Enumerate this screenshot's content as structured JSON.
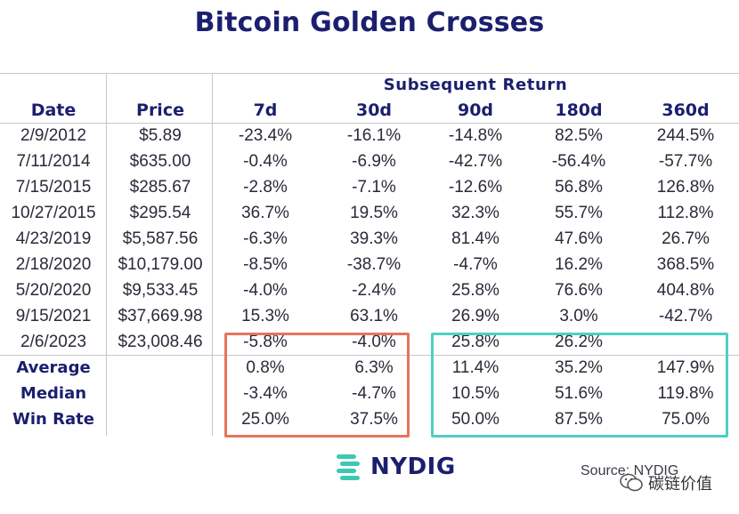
{
  "title": "Bitcoin Golden Crosses",
  "table": {
    "group_header": "Subsequent Return",
    "columns": [
      "Date",
      "Price",
      "7d",
      "30d",
      "90d",
      "180d",
      "360d"
    ],
    "rows": [
      [
        "2/9/2012",
        "$5.89",
        "-23.4%",
        "-16.1%",
        "-14.8%",
        "82.5%",
        "244.5%"
      ],
      [
        "7/11/2014",
        "$635.00",
        "-0.4%",
        "-6.9%",
        "-42.7%",
        "-56.4%",
        "-57.7%"
      ],
      [
        "7/15/2015",
        "$285.67",
        "-2.8%",
        "-7.1%",
        "-12.6%",
        "56.8%",
        "126.8%"
      ],
      [
        "10/27/2015",
        "$295.54",
        "36.7%",
        "19.5%",
        "32.3%",
        "55.7%",
        "112.8%"
      ],
      [
        "4/23/2019",
        "$5,587.56",
        "-6.3%",
        "39.3%",
        "81.4%",
        "47.6%",
        "26.7%"
      ],
      [
        "2/18/2020",
        "$10,179.00",
        "-8.5%",
        "-38.7%",
        "-4.7%",
        "16.2%",
        "368.5%"
      ],
      [
        "5/20/2020",
        "$9,533.45",
        "-4.0%",
        "-2.4%",
        "25.8%",
        "76.6%",
        "404.8%"
      ],
      [
        "9/15/2021",
        "$37,669.98",
        "15.3%",
        "63.1%",
        "26.9%",
        "3.0%",
        "-42.7%"
      ],
      [
        "2/6/2023",
        "$23,008.46",
        "-5.8%",
        "-4.0%",
        "25.8%",
        "26.2%",
        ""
      ]
    ],
    "stats": [
      {
        "label": "Average",
        "values": [
          "0.8%",
          "6.3%",
          "11.4%",
          "35.2%",
          "147.9%"
        ]
      },
      {
        "label": "Median",
        "values": [
          "-3.4%",
          "-4.7%",
          "10.5%",
          "51.6%",
          "119.8%"
        ]
      },
      {
        "label": "Win Rate",
        "values": [
          "25.0%",
          "37.5%",
          "50.0%",
          "87.5%",
          "75.0%"
        ]
      }
    ]
  },
  "footer": {
    "logo_text": "NYDIG",
    "source": "Source: NYDIG",
    "watermark": "碳链价值"
  },
  "colors": {
    "title": "#1b1f6e",
    "highlight_red": "#e8735d",
    "highlight_teal": "#4fcfc4",
    "logo_icon": "#3cc8b4"
  }
}
